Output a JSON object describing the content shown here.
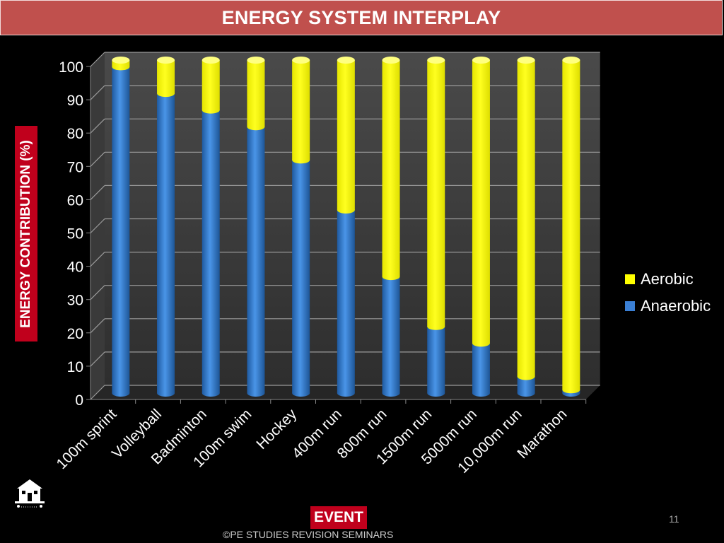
{
  "page": {
    "title": "ENERGY SYSTEM INTERPLAY",
    "footer": "©PE STUDIES REVISION SEMINARS",
    "page_number": "11"
  },
  "chart_data": {
    "type": "bar",
    "stacked": true,
    "xlabel": "EVENT",
    "ylabel": "ENERGY CONTRIBUTION (%)",
    "ylim": [
      0,
      100
    ],
    "yticks": [
      0,
      10,
      20,
      30,
      40,
      50,
      60,
      70,
      80,
      90,
      100
    ],
    "grid": true,
    "legend_position": "right",
    "categories": [
      "100m sprint",
      "Volleyball",
      "Badminton",
      "100m swim",
      "Hockey",
      "400m run",
      "800m run",
      "1500m run",
      "5000m run",
      "10,000m run",
      "Marathon"
    ],
    "series": [
      {
        "name": "Anaerobic",
        "color": "#3a7fd4",
        "values": [
          98,
          90,
          85,
          80,
          70,
          55,
          35,
          20,
          15,
          5,
          1
        ]
      },
      {
        "name": "Aerobic",
        "color": "#ffff00",
        "values": [
          2,
          10,
          15,
          20,
          30,
          45,
          65,
          80,
          85,
          95,
          99
        ]
      }
    ],
    "legend": [
      {
        "label": "Aerobic",
        "color": "#ffff00"
      },
      {
        "label": "Anaerobic",
        "color": "#3a7fd4"
      }
    ]
  }
}
